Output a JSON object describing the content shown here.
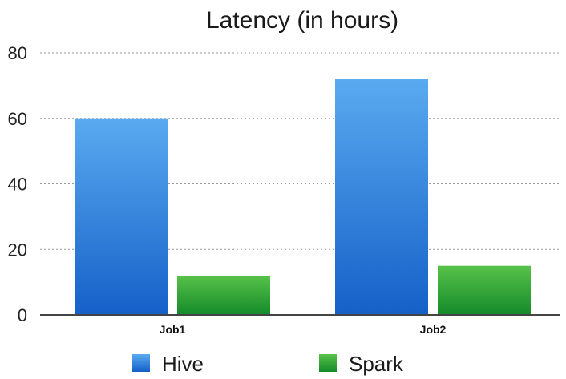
{
  "chart_data": {
    "type": "bar",
    "title": "Latency (in hours)",
    "categories": [
      "Job1",
      "Job2"
    ],
    "series": [
      {
        "name": "Hive",
        "values": [
          60,
          72
        ]
      },
      {
        "name": "Spark",
        "values": [
          12,
          15
        ]
      }
    ],
    "ylim": [
      0,
      80
    ],
    "yticks": [
      "0",
      "20",
      "40",
      "60",
      "80"
    ],
    "grid": true,
    "legend": "bottom",
    "colors": {
      "Hive": [
        "#5aaaf0",
        "#1560c8"
      ],
      "Spark": [
        "#58c24a",
        "#148a2a"
      ]
    }
  }
}
